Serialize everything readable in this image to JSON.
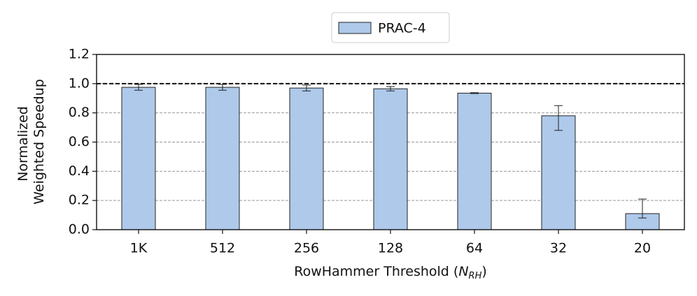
{
  "chart_data": {
    "type": "bar",
    "categories": [
      "1K",
      "512",
      "256",
      "128",
      "64",
      "32",
      "20"
    ],
    "series": [
      {
        "name": "PRAC-4",
        "color": "#aec9ea",
        "values": [
          0.975,
          0.975,
          0.97,
          0.965,
          0.935,
          0.78,
          0.11
        ],
        "yerr_lower": [
          0.02,
          0.02,
          0.02,
          0.015,
          0.003,
          0.1,
          0.03
        ],
        "yerr_upper": [
          0.02,
          0.02,
          0.02,
          0.015,
          0.003,
          0.07,
          0.1
        ]
      }
    ],
    "ylabel": [
      "Normalized",
      "Weighted Speedup"
    ],
    "xlabel_parts": [
      "RowHammer Threshold (",
      "N",
      "RH",
      ")"
    ],
    "ylim": [
      0,
      1.2
    ],
    "yticks": [
      {
        "value": 0,
        "label": "0.0"
      },
      0.2,
      0.4,
      0.6,
      0.8,
      {
        "value": 1,
        "label": "1.0"
      },
      1.2
    ],
    "hline": 1.0,
    "grid": true,
    "legend": "top"
  }
}
